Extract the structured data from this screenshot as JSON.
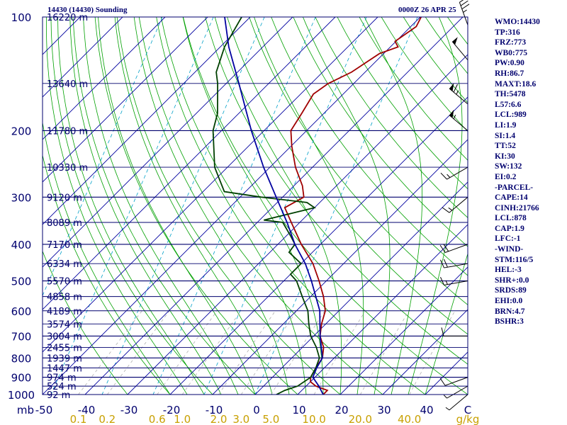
{
  "header": {
    "station": "14430 (14430) Sounding",
    "time": "0000Z 26 APR 25"
  },
  "indices": [
    "WMO:14430",
    "TP:316",
    "FRZ:773",
    "WB0:775",
    "PW:0.90",
    "RH:86.7",
    "MAXT:18.6",
    "TH:5478",
    "L57:6.6",
    "LCL:989",
    "LI:1.9",
    "SI:1.4",
    "TT:52",
    "KI:30",
    "SW:132",
    "EI:0.2",
    "-PARCEL-",
    "CAPE:14",
    "CINH:21766",
    "LCL:878",
    "CAP:1.9",
    "LFC:-1",
    "-WIND-",
    "STM:116/5",
    "HEL:-3",
    "SHR+:0.0",
    "SRDS:89",
    "EHI:0.0",
    "BRN:4.7",
    "BSHR:3"
  ],
  "chart_data": {
    "type": "skew-t log-p sounding",
    "pressure_axis": {
      "ticks": [
        100,
        200,
        300,
        400,
        500,
        600,
        700,
        800,
        900,
        1000
      ],
      "unit": "mb",
      "range": [
        100,
        1000
      ],
      "scale": "log"
    },
    "temperature_axis": {
      "ticks": [
        "-50",
        "-40",
        "-30",
        "-20",
        "-10",
        "0",
        "10",
        "20",
        "30",
        "40"
      ],
      "unit": "C",
      "range": [
        -50,
        50
      ]
    },
    "mixing_ratio_labels": [
      "0.1",
      "0.2",
      "0.6",
      "1.0",
      "2.0",
      "3.0",
      "5.0",
      "10.0",
      "20.0",
      "40.0"
    ],
    "mixing_ratio_unit": "g/kg",
    "height_labels": [
      {
        "p": 100,
        "label": "16220 m"
      },
      {
        "p": 150,
        "label": "13640 m"
      },
      {
        "p": 200,
        "label": "11780 m"
      },
      {
        "p": 250,
        "label": "10330 m"
      },
      {
        "p": 300,
        "label": "9120 m"
      },
      {
        "p": 350,
        "label": "8089 m"
      },
      {
        "p": 400,
        "label": "7170 m"
      },
      {
        "p": 450,
        "label": "6334 m"
      },
      {
        "p": 500,
        "label": "5570 m"
      },
      {
        "p": 550,
        "label": "4858 m"
      },
      {
        "p": 600,
        "label": "4189 m"
      },
      {
        "p": 650,
        "label": "3574 m"
      },
      {
        "p": 700,
        "label": "3004 m"
      },
      {
        "p": 750,
        "label": "2455 m"
      },
      {
        "p": 800,
        "label": "1939 m"
      },
      {
        "p": 850,
        "label": "1447 m"
      },
      {
        "p": 900,
        "label": "974 m"
      },
      {
        "p": 950,
        "label": "524 m"
      },
      {
        "p": 1000,
        "label": "92 m"
      }
    ],
    "series": [
      {
        "color": "#a00000",
        "points": [
          [
            1000,
            16
          ],
          [
            975,
            16
          ],
          [
            950,
            12.3
          ],
          [
            925,
            10
          ],
          [
            900,
            9
          ],
          [
            850,
            8
          ],
          [
            800,
            7.2
          ],
          [
            750,
            5
          ],
          [
            700,
            1.5
          ],
          [
            650,
            -1
          ],
          [
            600,
            -3.2
          ],
          [
            550,
            -7
          ],
          [
            500,
            -11.7
          ],
          [
            450,
            -17.2
          ],
          [
            400,
            -24.5
          ],
          [
            350,
            -32
          ],
          [
            320,
            -37
          ],
          [
            300,
            -35
          ],
          [
            280,
            -38
          ],
          [
            250,
            -44
          ],
          [
            220,
            -49.8
          ],
          [
            200,
            -53.7
          ],
          [
            180,
            -55.2
          ],
          [
            160,
            -57
          ],
          [
            150,
            -56
          ],
          [
            140,
            -53.2
          ],
          [
            125,
            -51
          ],
          [
            120,
            -48.2
          ],
          [
            116,
            -50.2
          ],
          [
            106,
            -48.7
          ],
          [
            100,
            -49.8
          ]
        ]
      },
      {
        "color": "#004000",
        "points": [
          [
            1000,
            5
          ],
          [
            975,
            6
          ],
          [
            950,
            8
          ],
          [
            900,
            9
          ],
          [
            850,
            8
          ],
          [
            800,
            6.5
          ],
          [
            750,
            3.3
          ],
          [
            700,
            -0.7
          ],
          [
            650,
            -4
          ],
          [
            600,
            -7.3
          ],
          [
            550,
            -12
          ],
          [
            500,
            -17
          ],
          [
            480,
            -20
          ],
          [
            450,
            -20
          ],
          [
            420,
            -25.5
          ],
          [
            400,
            -26
          ],
          [
            380,
            -29
          ],
          [
            350,
            -34
          ],
          [
            345,
            -39
          ],
          [
            320,
            -30
          ],
          [
            310,
            -33
          ],
          [
            300,
            -45
          ],
          [
            290,
            -55
          ],
          [
            250,
            -63
          ],
          [
            200,
            -72
          ],
          [
            180,
            -75
          ],
          [
            150,
            -82
          ],
          [
            140,
            -85
          ],
          [
            120,
            -89
          ],
          [
            100,
            -92
          ]
        ]
      },
      {
        "color": "#0000a0",
        "points": [
          [
            1000,
            16
          ],
          [
            950,
            13
          ],
          [
            900,
            9.5
          ],
          [
            850,
            8.2
          ],
          [
            800,
            7.2
          ],
          [
            700,
            1.5
          ],
          [
            600,
            -4.5
          ],
          [
            500,
            -13.5
          ],
          [
            450,
            -19
          ],
          [
            400,
            -26
          ],
          [
            350,
            -33
          ],
          [
            300,
            -41.5
          ],
          [
            250,
            -51.5
          ],
          [
            200,
            -63
          ],
          [
            150,
            -77
          ],
          [
            120,
            -88
          ],
          [
            100,
            -96
          ]
        ]
      }
    ],
    "wind_barbs": [
      {
        "p": 1000,
        "dir": 230,
        "spd": 5
      },
      {
        "p": 950,
        "dir": 240,
        "spd": 5
      },
      {
        "p": 900,
        "dir": 250,
        "spd": 10
      },
      {
        "p": 700,
        "dir": 270,
        "spd": 10
      },
      {
        "p": 500,
        "dir": 260,
        "spd": 15
      },
      {
        "p": 450,
        "dir": 260,
        "spd": 20
      },
      {
        "p": 400,
        "dir": 250,
        "spd": 20
      },
      {
        "p": 300,
        "dir": 230,
        "spd": 15
      },
      {
        "p": 250,
        "dir": 240,
        "spd": 15
      },
      {
        "p": 200,
        "dir": 310,
        "spd": 55
      },
      {
        "p": 170,
        "dir": 310,
        "spd": 65
      },
      {
        "p": 130,
        "dir": 320,
        "spd": 50
      },
      {
        "p": 105,
        "dir": 340,
        "spd": 35
      }
    ],
    "colors": {
      "isobar": "#00006e",
      "isotherm": "#0000a0",
      "dry_adiabat": "#00a000",
      "moist_adiabat": "#00a000",
      "mixing_ratio": "#b0b0b0",
      "ice_line": "#00a0c8",
      "text": "#00006e",
      "low_label": "#c8a000"
    }
  }
}
